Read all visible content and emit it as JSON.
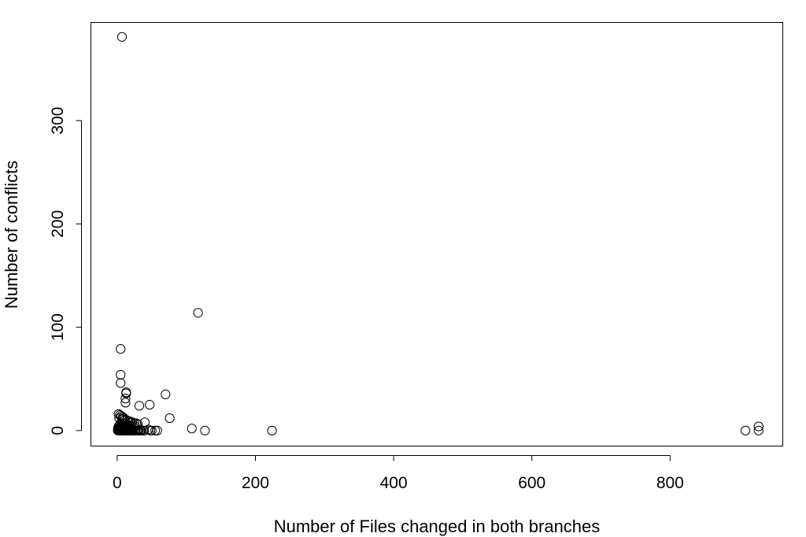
{
  "chart_data": {
    "type": "scatter",
    "title": "",
    "xlabel": "Number of Files changed in both branches",
    "ylabel": "Number of conflicts",
    "xlim": [
      -38,
      963
    ],
    "ylim": [
      -15,
      395
    ],
    "xticks": [
      0,
      200,
      400,
      600,
      800
    ],
    "yticks": [
      0,
      100,
      200,
      300
    ],
    "grid": false,
    "legend": "none",
    "marker": "open-circle",
    "x": [
      7,
      117,
      5,
      5,
      5,
      70,
      13,
      13,
      12,
      12,
      47,
      32,
      76,
      108,
      2,
      4,
      6,
      8,
      10,
      3,
      7,
      9,
      11,
      14,
      16,
      18,
      20,
      22,
      25,
      28,
      30,
      4,
      6,
      8,
      12,
      15,
      18,
      2,
      5,
      9,
      13,
      17,
      21,
      26,
      3,
      6,
      10,
      14,
      19,
      24,
      1,
      3,
      5,
      7,
      9,
      11,
      13,
      15,
      17,
      2,
      4,
      6,
      8,
      10,
      12,
      2,
      4,
      6,
      8,
      1,
      3,
      5,
      7,
      9,
      11,
      13,
      15,
      17,
      19,
      21,
      23,
      25,
      27,
      29,
      31,
      33,
      35,
      38,
      40,
      45,
      50,
      55,
      58,
      127,
      224,
      909,
      928,
      928,
      3,
      5,
      7,
      9,
      11,
      14,
      16,
      18,
      20,
      23,
      26,
      30,
      34,
      39,
      48
    ],
    "y": [
      381,
      114,
      79,
      54,
      46,
      35,
      37,
      36,
      31,
      27,
      25,
      24,
      12,
      2,
      16,
      15,
      14,
      13,
      12,
      12,
      11,
      11,
      10,
      10,
      9,
      9,
      8,
      8,
      7,
      7,
      6,
      6,
      6,
      5,
      5,
      5,
      5,
      4,
      4,
      4,
      4,
      4,
      4,
      4,
      3,
      3,
      3,
      3,
      3,
      3,
      2,
      2,
      2,
      2,
      2,
      2,
      2,
      2,
      2,
      1,
      1,
      1,
      1,
      1,
      1,
      0,
      0,
      0,
      0,
      0,
      0,
      0,
      0,
      0,
      0,
      0,
      0,
      0,
      0,
      0,
      0,
      0,
      0,
      0,
      0,
      0,
      0,
      0,
      8,
      1,
      0,
      0,
      0,
      0,
      0,
      0,
      4,
      0,
      0,
      0,
      0,
      0,
      0,
      0,
      0,
      0,
      0,
      0,
      0,
      0,
      0,
      0,
      0
    ]
  }
}
